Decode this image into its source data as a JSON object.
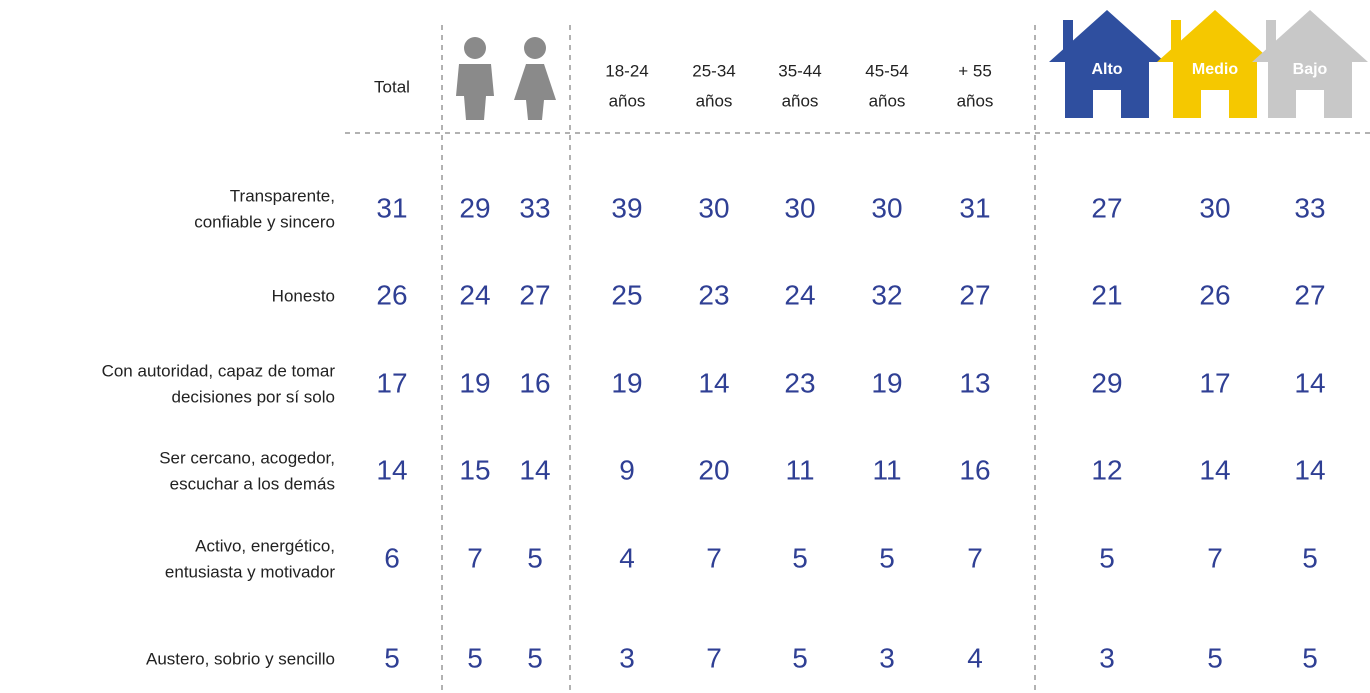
{
  "header": {
    "total": "Total",
    "ages": [
      [
        "18-24",
        "años"
      ],
      [
        "25-34",
        "años"
      ],
      [
        "35-44",
        "años"
      ],
      [
        "45-54",
        "años"
      ],
      [
        "+ 55",
        "años"
      ]
    ],
    "levels": [
      "Alto",
      "Medio",
      "Bajo"
    ]
  },
  "rows": [
    {
      "label": [
        "Transparente,",
        "confiable y sincero"
      ],
      "values": [
        31,
        29,
        33,
        39,
        30,
        30,
        30,
        31,
        27,
        30,
        33
      ]
    },
    {
      "label": [
        "Honesto"
      ],
      "values": [
        26,
        24,
        27,
        25,
        23,
        24,
        32,
        27,
        21,
        26,
        27
      ]
    },
    {
      "label": [
        "Con autoridad, capaz de tomar",
        "decisiones por sí solo"
      ],
      "values": [
        17,
        19,
        16,
        19,
        14,
        23,
        19,
        13,
        29,
        17,
        14
      ]
    },
    {
      "label": [
        "Ser cercano, acogedor,",
        "escuchar a los demás"
      ],
      "values": [
        14,
        15,
        14,
        9,
        20,
        11,
        11,
        16,
        12,
        14,
        14
      ]
    },
    {
      "label": [
        "Activo, energético,",
        "entusiasta y motivador"
      ],
      "values": [
        6,
        7,
        5,
        4,
        7,
        5,
        5,
        7,
        5,
        7,
        5
      ]
    },
    {
      "label": [
        "Austero, sobrio y sencillo"
      ],
      "values": [
        5,
        5,
        5,
        3,
        7,
        5,
        3,
        4,
        3,
        5,
        5
      ]
    }
  ]
}
